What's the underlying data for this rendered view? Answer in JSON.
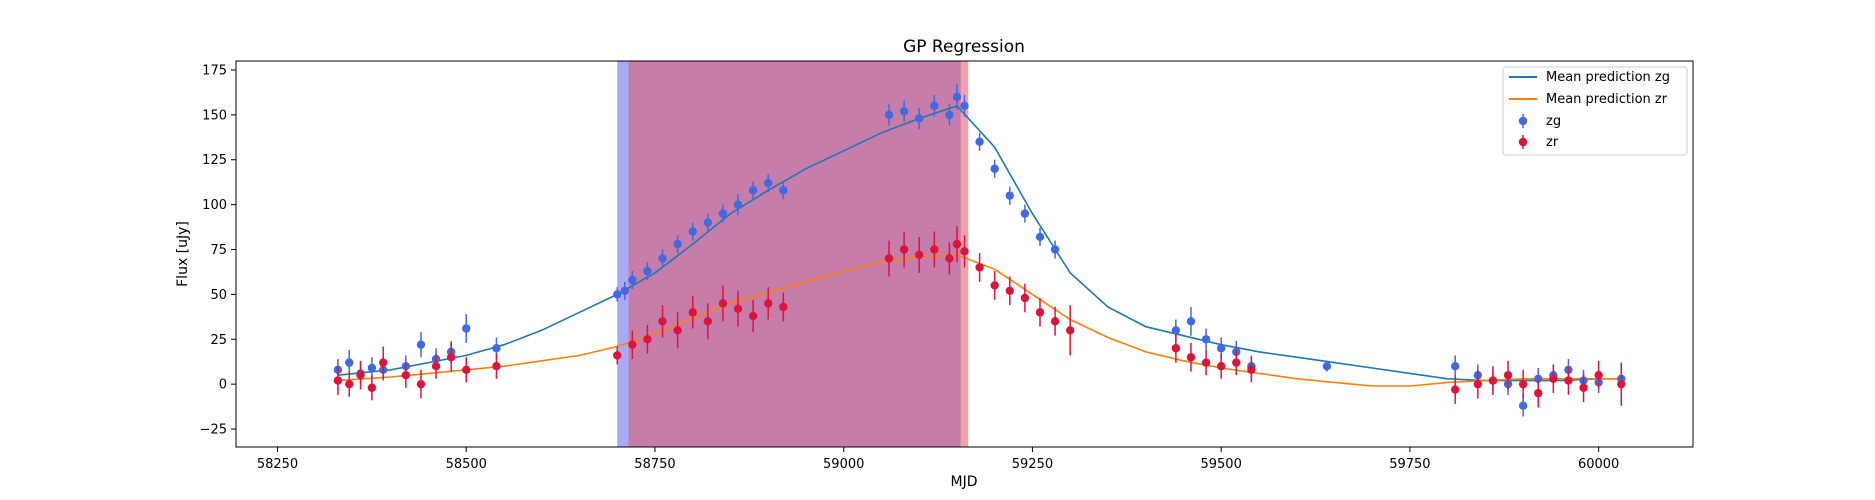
{
  "chart_data": {
    "type": "scatter",
    "title": "GP Regression",
    "xlabel": "MJD",
    "ylabel": "Flux [uJy]",
    "xlim": [
      58195,
      60125
    ],
    "ylim": [
      -35,
      180
    ],
    "xticks": [
      58250,
      58500,
      58750,
      59000,
      59250,
      59500,
      59750,
      60000
    ],
    "yticks": [
      -25,
      0,
      25,
      50,
      75,
      100,
      125,
      150,
      175
    ],
    "grid": false,
    "legend_position": "top-right",
    "shaded_regions": [
      {
        "x_start": 58700,
        "x_end": 59155,
        "color": "#6f6ff0",
        "opacity": 0.6
      },
      {
        "x_start": 58715,
        "x_end": 59165,
        "color": "#e05a6a",
        "opacity": 0.55
      }
    ],
    "series": [
      {
        "name": "Mean prediction zg",
        "kind": "line",
        "color": "#1f77b4",
        "x": [
          58330,
          58400,
          58450,
          58500,
          58550,
          58600,
          58650,
          58700,
          58750,
          58800,
          58850,
          58900,
          58950,
          59000,
          59050,
          59100,
          59150,
          59200,
          59250,
          59300,
          59350,
          59400,
          59450,
          59500,
          59550,
          59600,
          59650,
          59700,
          59750,
          59800,
          59850,
          59900,
          59950,
          60000,
          60030
        ],
        "y": [
          5,
          8,
          12,
          16,
          22,
          30,
          40,
          50,
          62,
          78,
          95,
          108,
          120,
          130,
          140,
          148,
          155,
          132,
          95,
          62,
          43,
          32,
          27,
          22,
          18,
          15,
          12,
          9,
          6,
          3,
          2,
          2,
          2,
          3,
          3
        ]
      },
      {
        "name": "Mean prediction zr",
        "kind": "line",
        "color": "#ff7f0e",
        "x": [
          58330,
          58400,
          58450,
          58500,
          58550,
          58600,
          58650,
          58700,
          58750,
          58800,
          58850,
          58900,
          58950,
          59000,
          59050,
          59100,
          59150,
          59200,
          59250,
          59300,
          59350,
          59400,
          59450,
          59500,
          59550,
          59600,
          59650,
          59700,
          59750,
          59800,
          59850,
          59900,
          59950,
          60000,
          60030
        ],
        "y": [
          2,
          4,
          6,
          8,
          10,
          13,
          16,
          21,
          28,
          37,
          45,
          51,
          57,
          63,
          68,
          71,
          72,
          64,
          50,
          36,
          26,
          18,
          13,
          9,
          6,
          3,
          1,
          -1,
          -1,
          1,
          2,
          3,
          3,
          3,
          3
        ]
      },
      {
        "name": "zg",
        "kind": "errorbar",
        "color": "#4169e1",
        "x": [
          58330,
          58345,
          58360,
          58375,
          58390,
          58420,
          58440,
          58460,
          58480,
          58500,
          58540,
          58700,
          58710,
          58720,
          58740,
          58760,
          58780,
          58800,
          58820,
          58840,
          58860,
          58880,
          58900,
          58920,
          59060,
          59080,
          59100,
          59120,
          59140,
          59150,
          59160,
          59180,
          59200,
          59220,
          59240,
          59260,
          59280,
          59440,
          59460,
          59480,
          59500,
          59520,
          59540,
          59640,
          59810,
          59840,
          59860,
          59880,
          59900,
          59920,
          59940,
          59960,
          59980,
          60000,
          60030
        ],
        "y": [
          8,
          12,
          6,
          9,
          8,
          10,
          22,
          14,
          18,
          31,
          20,
          50,
          52,
          58,
          63,
          70,
          78,
          85,
          90,
          95,
          100,
          108,
          112,
          108,
          150,
          152,
          148,
          155,
          150,
          160,
          155,
          135,
          120,
          105,
          95,
          82,
          75,
          30,
          35,
          25,
          20,
          18,
          10,
          10,
          10,
          5,
          2,
          0,
          -12,
          3,
          5,
          8,
          2,
          1,
          3
        ],
        "yerr": [
          6,
          7,
          6,
          6,
          6,
          6,
          7,
          6,
          6,
          8,
          6,
          4,
          5,
          5,
          5,
          5,
          5,
          5,
          5,
          5,
          6,
          5,
          5,
          5,
          6,
          6,
          6,
          6,
          6,
          7,
          6,
          5,
          5,
          5,
          5,
          5,
          5,
          6,
          8,
          6,
          6,
          6,
          6,
          3,
          6,
          6,
          6,
          6,
          6,
          6,
          6,
          6,
          6,
          6,
          6
        ]
      },
      {
        "name": "zr",
        "kind": "errorbar",
        "color": "#dc143c",
        "x": [
          58330,
          58345,
          58360,
          58375,
          58390,
          58420,
          58440,
          58460,
          58480,
          58500,
          58540,
          58700,
          58720,
          58740,
          58760,
          58780,
          58800,
          58820,
          58840,
          58860,
          58880,
          58900,
          58920,
          59060,
          59080,
          59100,
          59120,
          59140,
          59150,
          59160,
          59180,
          59200,
          59220,
          59240,
          59260,
          59280,
          59300,
          59440,
          59460,
          59480,
          59500,
          59520,
          59540,
          59810,
          59840,
          59860,
          59880,
          59900,
          59920,
          59940,
          59960,
          59980,
          60000,
          60030
        ],
        "y": [
          2,
          0,
          5,
          -2,
          12,
          5,
          0,
          10,
          15,
          8,
          10,
          16,
          22,
          25,
          35,
          30,
          40,
          35,
          45,
          42,
          38,
          45,
          43,
          70,
          75,
          72,
          75,
          70,
          78,
          74,
          65,
          55,
          52,
          48,
          40,
          35,
          30,
          20,
          15,
          12,
          10,
          12,
          8,
          -3,
          0,
          2,
          5,
          0,
          -5,
          3,
          2,
          -2,
          5,
          0
        ],
        "yerr": [
          8,
          7,
          8,
          7,
          9,
          7,
          8,
          7,
          8,
          7,
          7,
          5,
          8,
          8,
          9,
          10,
          9,
          10,
          10,
          10,
          9,
          9,
          8,
          10,
          10,
          10,
          10,
          9,
          10,
          9,
          8,
          8,
          8,
          8,
          8,
          8,
          14,
          8,
          8,
          7,
          7,
          7,
          7,
          8,
          8,
          8,
          8,
          8,
          8,
          8,
          8,
          8,
          8,
          12
        ]
      }
    ]
  }
}
